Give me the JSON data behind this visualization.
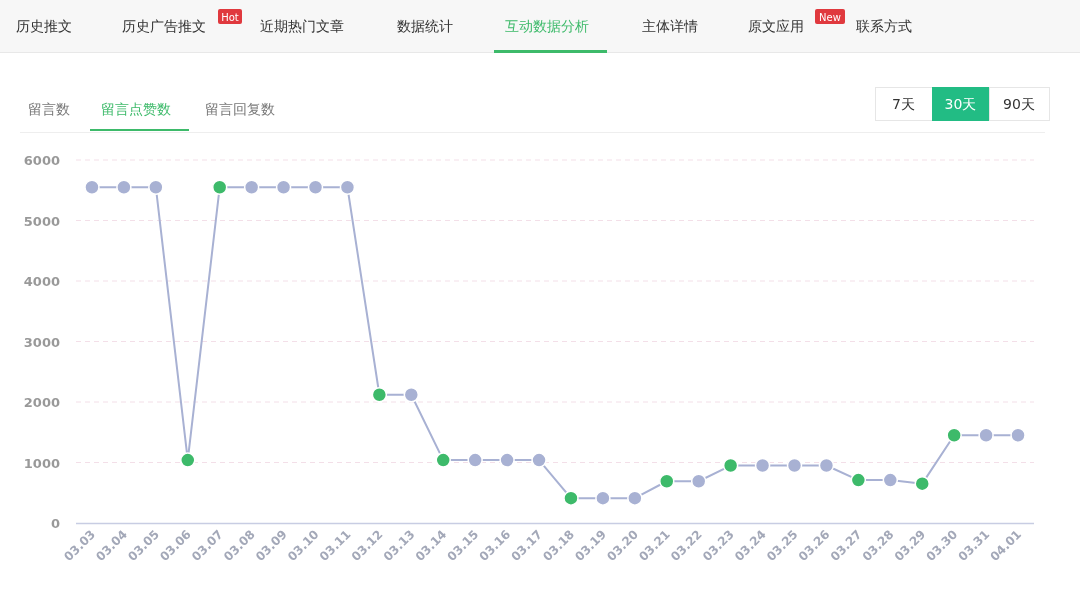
{
  "chart_data": {
    "type": "line",
    "categories": [
      "03.03",
      "03.04",
      "03.05",
      "03.06",
      "03.07",
      "03.08",
      "03.09",
      "03.10",
      "03.11",
      "03.12",
      "03.13",
      "03.14",
      "03.15",
      "03.16",
      "03.17",
      "03.18",
      "03.19",
      "03.20",
      "03.21",
      "03.22",
      "03.23",
      "03.24",
      "03.25",
      "03.26",
      "03.27",
      "03.28",
      "03.29",
      "03.30",
      "03.31",
      "04.01"
    ],
    "series": [
      {
        "color": "#a8b1d3",
        "values": [
          5550,
          5550,
          5550,
          1040,
          5550,
          5550,
          5550,
          5550,
          5550,
          2120,
          2120,
          1040,
          1040,
          1040,
          1040,
          410,
          410,
          410,
          690,
          690,
          950,
          950,
          950,
          950,
          710,
          710,
          650,
          1450,
          1450,
          1450
        ],
        "colors": [
          "#a8b1d3",
          "#a8b1d3",
          "#a8b1d3",
          "#3dba6a",
          "#3dba6a",
          "#a8b1d3",
          "#a8b1d3",
          "#a8b1d3",
          "#a8b1d3",
          "#3dba6a",
          "#a8b1d3",
          "#3dba6a",
          "#a8b1d3",
          "#a8b1d3",
          "#a8b1d3",
          "#3dba6a",
          "#a8b1d3",
          "#a8b1d3",
          "#3dba6a",
          "#a8b1d3",
          "#3dba6a",
          "#a8b1d3",
          "#a8b1d3",
          "#a8b1d3",
          "#3dba6a",
          "#a8b1d3",
          "#3dba6a",
          "#3dba6a",
          "#a8b1d3",
          "#a8b1d3"
        ]
      }
    ],
    "ylim": [
      0,
      6000
    ],
    "yticks": [
      0,
      1000,
      2000,
      3000,
      4000,
      5000,
      6000
    ],
    "grid": "y",
    "marker": "circle",
    "line_style": "solid",
    "annotations": [
      "历史推文",
      "历史广告推文",
      "近期热门文章",
      "数据统计",
      "互动数据分析",
      "主体详情",
      "原文应用",
      "联系方式",
      "Hot",
      "New",
      "留言数",
      "留言点赞数",
      "留言回复数",
      "7天",
      "30天",
      "90天"
    ]
  }
}
